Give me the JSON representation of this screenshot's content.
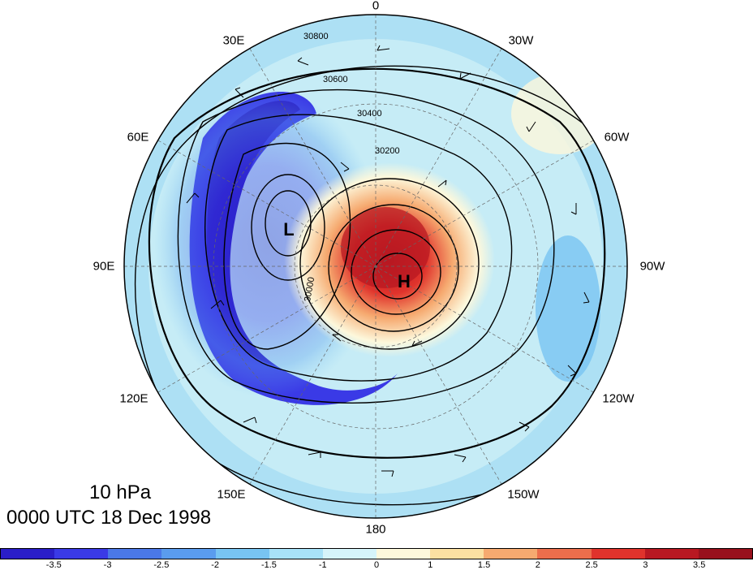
{
  "title": {
    "level": "10 hPa",
    "time": "0000 UTC 18 Dec 1998"
  },
  "longitude_labels": {
    "lon_0": "0",
    "lon_30w": "30W",
    "lon_60w": "60W",
    "lon_90w": "90W",
    "lon_120w": "120W",
    "lon_150w": "150W",
    "lon_180": "180",
    "lon_150e": "150E",
    "lon_120e": "120E",
    "lon_90e": "90E",
    "lon_60e": "60E",
    "lon_30e": "30E"
  },
  "pressure_centers": {
    "low": "L",
    "high": "H"
  },
  "contour_labels": [
    "30800",
    "30600",
    "30400",
    "30200",
    "30000"
  ],
  "colorbar": {
    "ticks": [
      "-3.5",
      "-3",
      "-2.5",
      "-2",
      "-1.5",
      "-1",
      "0",
      "1",
      "1.5",
      "2",
      "2.5",
      "3",
      "3.5"
    ],
    "colors": [
      "#2a1ec8",
      "#3a3ae6",
      "#4a78e8",
      "#5a9cee",
      "#78c4f2",
      "#a8e2f8",
      "#d6f4fa",
      "#fdf8dc",
      "#fbe0a2",
      "#f6aa70",
      "#ec6e4c",
      "#e0332c",
      "#b81822",
      "#98101c"
    ]
  }
}
